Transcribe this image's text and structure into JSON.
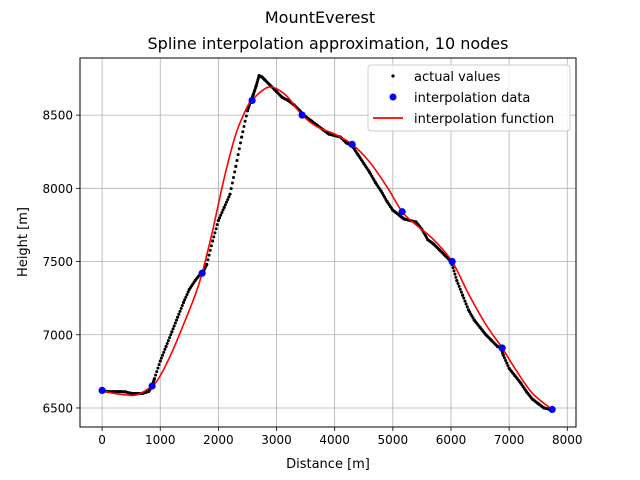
{
  "figure": {
    "suptitle": "MountEverest",
    "title": "Spline interpolation approximation, 10 nodes"
  },
  "chart_data": {
    "type": "scatter",
    "title": "Spline interpolation approximation, 10 nodes",
    "xlabel": "Distance [m]",
    "ylabel": "Height [m]",
    "xlim": [
      -380,
      8150
    ],
    "ylim": [
      6370,
      8890
    ],
    "xticks": [
      0,
      1000,
      2000,
      3000,
      4000,
      5000,
      6000,
      7000,
      8000
    ],
    "yticks": [
      6500,
      7000,
      7500,
      8000,
      8500
    ],
    "grid": true,
    "legend_position": "top-right",
    "series": [
      {
        "name": "actual values",
        "kind": "points",
        "color": "#000000",
        "x": [
          0,
          100,
          200,
          300,
          400,
          500,
          600,
          700,
          800,
          860,
          900,
          1000,
          1100,
          1200,
          1300,
          1400,
          1500,
          1600,
          1700,
          1750,
          1800,
          1900,
          2000,
          2100,
          2200,
          2300,
          2400,
          2500,
          2560,
          2600,
          2650,
          2700,
          2750,
          2800,
          2900,
          3000,
          3100,
          3200,
          3300,
          3400,
          3450,
          3500,
          3600,
          3700,
          3800,
          3900,
          4000,
          4100,
          4200,
          4300,
          4400,
          4500,
          4600,
          4700,
          4800,
          4900,
          5000,
          5100,
          5160,
          5200,
          5300,
          5400,
          5500,
          5600,
          5700,
          5800,
          5900,
          6000,
          6020,
          6100,
          6200,
          6300,
          6400,
          6500,
          6600,
          6700,
          6800,
          6860,
          6900,
          7000,
          7100,
          7200,
          7300,
          7400,
          7500,
          7600,
          7700,
          7740
        ],
        "y": [
          6620,
          6612,
          6612,
          6612,
          6610,
          6600,
          6598,
          6600,
          6612,
          6650,
          6700,
          6820,
          6920,
          7020,
          7120,
          7220,
          7310,
          7370,
          7420,
          7440,
          7480,
          7640,
          7780,
          7870,
          7960,
          8150,
          8350,
          8530,
          8600,
          8640,
          8700,
          8770,
          8760,
          8740,
          8700,
          8660,
          8620,
          8600,
          8570,
          8530,
          8505,
          8490,
          8460,
          8430,
          8400,
          8370,
          8360,
          8350,
          8310,
          8290,
          8230,
          8170,
          8110,
          8040,
          7980,
          7910,
          7850,
          7820,
          7800,
          7790,
          7780,
          7770,
          7720,
          7650,
          7620,
          7580,
          7540,
          7500,
          7480,
          7370,
          7270,
          7170,
          7100,
          7050,
          7000,
          6960,
          6920,
          6910,
          6860,
          6770,
          6720,
          6670,
          6610,
          6560,
          6530,
          6500,
          6490,
          6490
        ]
      },
      {
        "name": "interpolation data",
        "kind": "markers",
        "color": "#0000ff",
        "x": [
          0,
          860,
          1720,
          2580,
          3440,
          4300,
          5160,
          6020,
          6880,
          7740
        ],
        "y": [
          6620,
          6650,
          7420,
          8600,
          8500,
          8300,
          7840,
          7500,
          6910,
          6490
        ]
      },
      {
        "name": "interpolation function",
        "kind": "line",
        "color": "#ff0000",
        "x": [
          0,
          200,
          400,
          600,
          860,
          1000,
          1200,
          1400,
          1600,
          1720,
          1900,
          2100,
          2300,
          2500,
          2580,
          2700,
          2850,
          3000,
          3200,
          3440,
          3700,
          4000,
          4300,
          4600,
          4900,
          5160,
          5400,
          5700,
          6020,
          6300,
          6600,
          6880,
          7100,
          7400,
          7740
        ],
        "y": [
          6620,
          6600,
          6590,
          6590,
          6650,
          6720,
          6880,
          7070,
          7270,
          7420,
          7710,
          8070,
          8370,
          8560,
          8600,
          8650,
          8690,
          8680,
          8620,
          8500,
          8420,
          8370,
          8300,
          8180,
          8010,
          7840,
          7750,
          7650,
          7500,
          7280,
          7070,
          6910,
          6770,
          6600,
          6490
        ]
      }
    ]
  }
}
